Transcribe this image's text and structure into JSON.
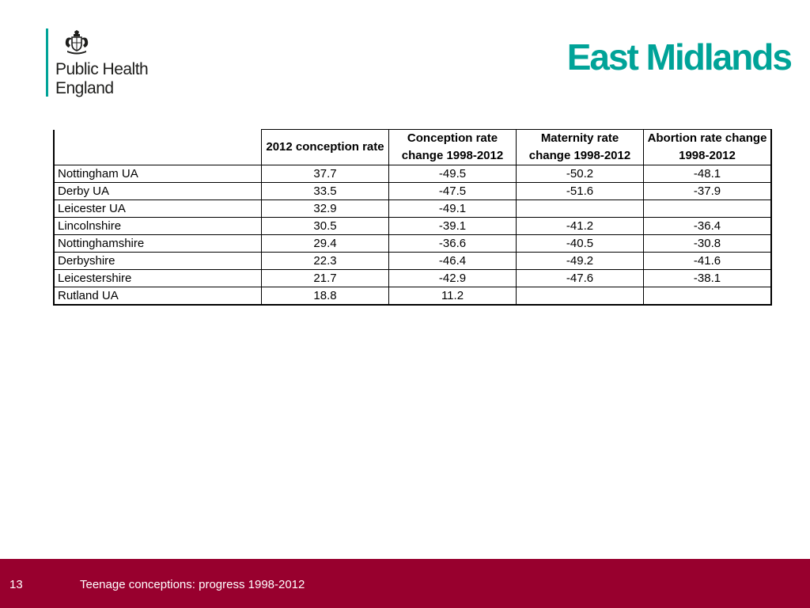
{
  "logo": {
    "org_line1": "Public Health",
    "org_line2": "England",
    "crest_icon": "royal-crest-icon",
    "bar_color": "#00a398"
  },
  "title": "East Midlands",
  "accent_color": "#00a398",
  "table": {
    "headers": [
      "",
      "2012 conception rate",
      "Conception rate change 1998-2012",
      "Maternity rate change 1998-2012",
      "Abortion rate change 1998-2012"
    ],
    "rows": [
      [
        "Nottingham UA",
        "37.7",
        "-49.5",
        "-50.2",
        "-48.1"
      ],
      [
        "Derby UA",
        "33.5",
        "-47.5",
        "-51.6",
        "-37.9"
      ],
      [
        "Leicester UA",
        "32.9",
        "-49.1",
        "",
        ""
      ],
      [
        "Lincolnshire",
        "30.5",
        "-39.1",
        "-41.2",
        "-36.4"
      ],
      [
        "Nottinghamshire",
        "29.4",
        "-36.6",
        "-40.5",
        "-30.8"
      ],
      [
        "Derbyshire",
        "22.3",
        "-46.4",
        "-49.2",
        "-41.6"
      ],
      [
        "Leicestershire",
        "21.7",
        "-42.9",
        "-47.6",
        "-38.1"
      ],
      [
        "Rutland UA",
        "18.8",
        "11.2",
        "",
        ""
      ]
    ]
  },
  "footer": {
    "slide_number": "13",
    "text": "Teenage conceptions: progress 1998-2012",
    "background_color": "#98002e"
  }
}
